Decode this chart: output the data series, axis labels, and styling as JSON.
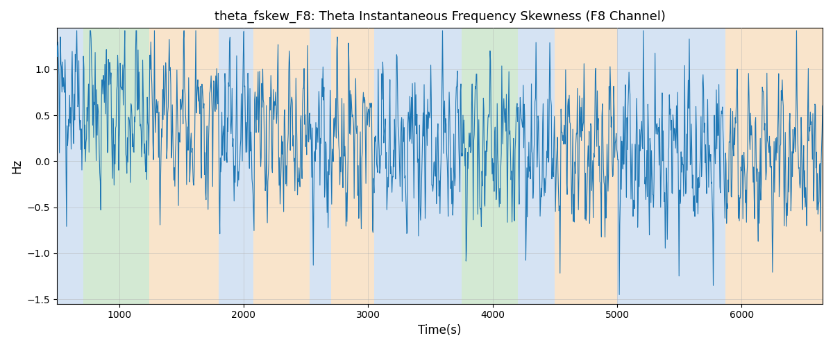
{
  "title": "theta_fskew_F8: Theta Instantaneous Frequency Skewness (F8 Channel)",
  "xlabel": "Time(s)",
  "ylabel": "Hz",
  "xlim": [
    500,
    6650
  ],
  "ylim": [
    -1.55,
    1.45
  ],
  "line_color": "#1f77b4",
  "line_width": 0.8,
  "bg_regions": [
    {
      "xstart": 500,
      "xend": 710,
      "color": "#adc8e8",
      "alpha": 0.5
    },
    {
      "xstart": 710,
      "xend": 1240,
      "color": "#a8d5a8",
      "alpha": 0.5
    },
    {
      "xstart": 1240,
      "xend": 1800,
      "color": "#f5ca98",
      "alpha": 0.5
    },
    {
      "xstart": 1800,
      "xend": 2080,
      "color": "#adc8e8",
      "alpha": 0.5
    },
    {
      "xstart": 2080,
      "xend": 2530,
      "color": "#f5ca98",
      "alpha": 0.5
    },
    {
      "xstart": 2530,
      "xend": 2700,
      "color": "#adc8e8",
      "alpha": 0.5
    },
    {
      "xstart": 2700,
      "xend": 3050,
      "color": "#f5ca98",
      "alpha": 0.5
    },
    {
      "xstart": 3050,
      "xend": 3750,
      "color": "#adc8e8",
      "alpha": 0.5
    },
    {
      "xstart": 3750,
      "xend": 4200,
      "color": "#a8d5a8",
      "alpha": 0.5
    },
    {
      "xstart": 4200,
      "xend": 4500,
      "color": "#adc8e8",
      "alpha": 0.5
    },
    {
      "xstart": 4500,
      "xend": 5000,
      "color": "#f5ca98",
      "alpha": 0.5
    },
    {
      "xstart": 5000,
      "xend": 5630,
      "color": "#adc8e8",
      "alpha": 0.5
    },
    {
      "xstart": 5630,
      "xend": 5870,
      "color": "#adc8e8",
      "alpha": 0.5
    },
    {
      "xstart": 5870,
      "xend": 6650,
      "color": "#f5ca98",
      "alpha": 0.5
    }
  ],
  "yticks": [
    -1.5,
    -1.0,
    -0.5,
    0.0,
    0.5,
    1.0
  ],
  "xticks": [
    1000,
    2000,
    3000,
    4000,
    5000,
    6000
  ],
  "grid_color": "#b0b0b0",
  "grid_alpha": 0.5,
  "grid_linewidth": 0.6,
  "n_points": 1500,
  "seed": 42
}
